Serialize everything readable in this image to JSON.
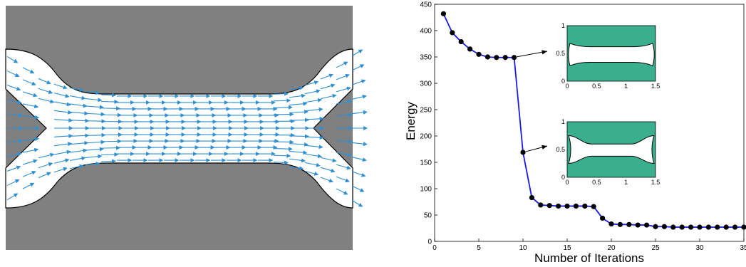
{
  "chart_data": [
    {
      "type": "vector_field",
      "title": "",
      "colors": {
        "solid": "#808080",
        "fluid": "#ffffff",
        "arrows": "#2f8fd0"
      }
    },
    {
      "type": "line",
      "title": "",
      "xlabel": "Number of Iterations",
      "ylabel": "Energy",
      "xlim": [
        0,
        35
      ],
      "ylim": [
        0,
        450
      ],
      "xticks": [
        0,
        5,
        10,
        15,
        20,
        25,
        30,
        35
      ],
      "yticks": [
        0,
        50,
        100,
        150,
        200,
        250,
        300,
        350,
        400,
        450
      ],
      "grid": false,
      "series": [
        {
          "x": [
            1,
            2,
            3,
            4,
            5,
            6,
            7,
            8,
            9,
            10,
            11,
            12,
            13,
            14,
            15,
            16,
            17,
            18,
            19,
            20,
            21,
            22,
            23,
            24,
            25,
            26,
            27,
            28,
            29,
            30,
            31,
            32,
            33,
            34,
            35
          ],
          "values": [
            432,
            396,
            379,
            365,
            355,
            350,
            349,
            349,
            349,
            169,
            83,
            69,
            68,
            67,
            67,
            67,
            67,
            66,
            44,
            33,
            32,
            32,
            31,
            31,
            28,
            28,
            27,
            27,
            27,
            27,
            27,
            27,
            27,
            27,
            27
          ],
          "color": "#1a1ae6",
          "marker": "#000000"
        }
      ],
      "insets": [
        {
          "points_to_x": 9,
          "points_to_y": 349,
          "fill": "#3aaf8e",
          "xticks": [
            "0",
            "0.5",
            "1",
            "1.5"
          ],
          "yticks": [
            "0",
            "0.5",
            "1"
          ]
        },
        {
          "points_to_x": 10,
          "points_to_y": 169,
          "fill": "#3aaf8e",
          "xticks": [
            "0",
            "0.5",
            "1",
            "1.5"
          ],
          "yticks": [
            "0",
            "0.5",
            "1"
          ]
        }
      ]
    }
  ]
}
